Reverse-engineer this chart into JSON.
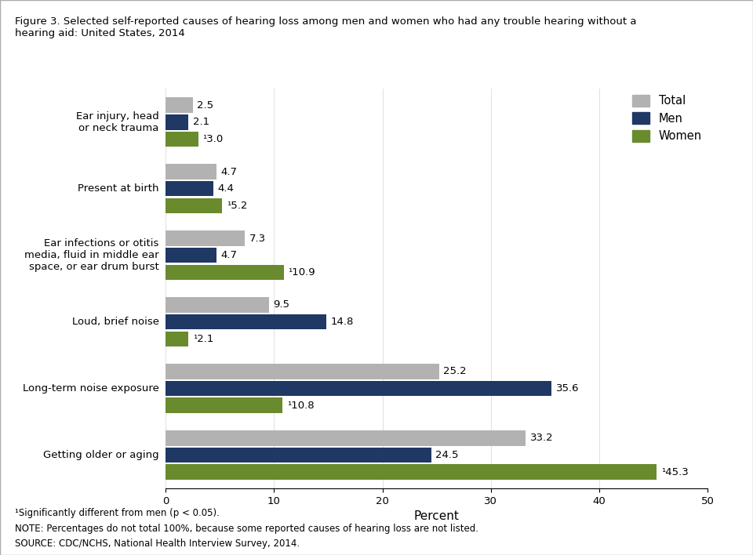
{
  "title": "Figure 3. Selected self-reported causes of hearing loss among men and women who had any trouble hearing without a\nhearing aid: United States, 2014",
  "categories": [
    "Getting older or aging",
    "Long-term noise exposure",
    "Loud, brief noise",
    "Ear infections or otitis\nmedia, fluid in middle ear\nspace, or ear drum burst",
    "Present at birth",
    "Ear injury, head\nor neck trauma"
  ],
  "total": [
    33.2,
    25.2,
    9.5,
    7.3,
    4.7,
    2.5
  ],
  "men": [
    24.5,
    35.6,
    14.8,
    4.7,
    4.4,
    2.1
  ],
  "women": [
    45.3,
    10.8,
    2.1,
    10.9,
    5.2,
    3.0
  ],
  "total_labels": [
    "33.2",
    "25.2",
    "9.5",
    "7.3",
    "4.7",
    "2.5"
  ],
  "men_labels": [
    "24.5",
    "35.6",
    "14.8",
    "4.7",
    "4.4",
    "2.1"
  ],
  "women_labels": [
    "¹45.3",
    "¹10.8",
    "¹2.1",
    "¹10.9",
    "¹5.2",
    "¹3.0"
  ],
  "color_total": "#b2b2b2",
  "color_men": "#1f3864",
  "color_women": "#6a8a2e",
  "xlabel": "Percent",
  "xlim": [
    0,
    50
  ],
  "xticks": [
    0,
    10,
    20,
    30,
    40,
    50
  ],
  "legend_labels": [
    "Total",
    "Men",
    "Women"
  ],
  "footnote1": "¹Significantly different from men (p < 0.05).",
  "footnote2": "NOTE: Percentages do not total 100%, because some reported causes of hearing loss are not listed.",
  "footnote3": "SOURCE: CDC/NCHS, National Health Interview Survey, 2014.",
  "bar_height": 0.23,
  "figsize": [
    9.6,
    7.08
  ],
  "dpi": 100
}
